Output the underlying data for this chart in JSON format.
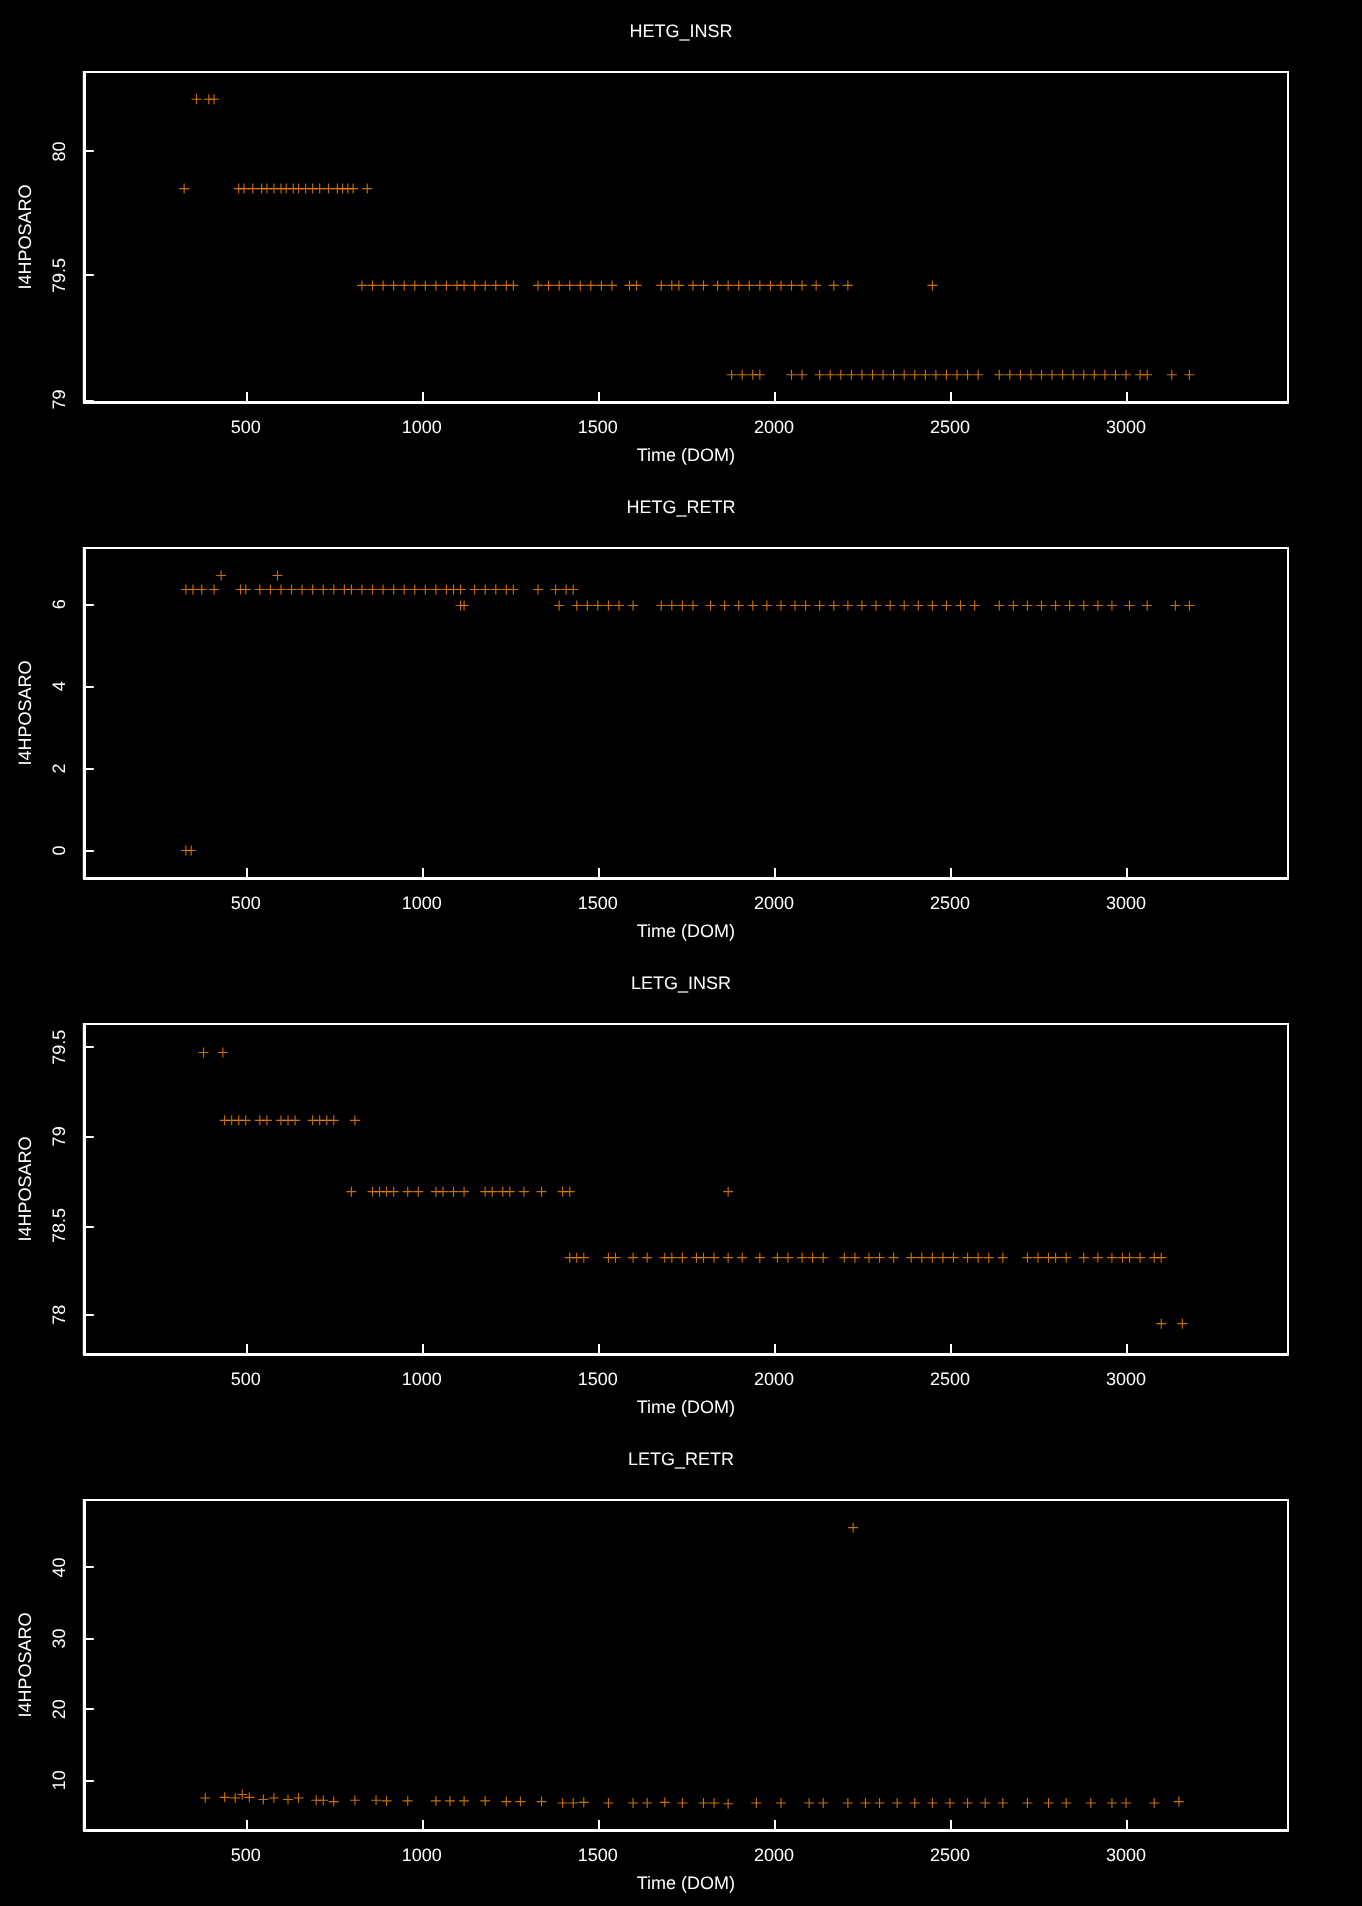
{
  "chart_data": [
    {
      "type": "scatter",
      "title": "HETG_INSR",
      "xlabel": "Time (DOM)",
      "ylabel": "I4HPOSARO",
      "xlim": [
        40,
        3460
      ],
      "xticks": [
        500,
        1000,
        1500,
        2000,
        2500,
        3000
      ],
      "ylim": [
        78.99,
        80.32
      ],
      "yticks": [
        79,
        79.5,
        80
      ],
      "marker": "cross",
      "series": [
        {
          "color": "#ff8c00",
          "x": [
            360,
            395,
            410
          ],
          "values": [
            80.21,
            80.21,
            80.21
          ]
        },
        {
          "color": "#ff8c00",
          "x": [
            325,
            480,
            495,
            520,
            545,
            560,
            580,
            600,
            615,
            635,
            650,
            670,
            690,
            710,
            735,
            760,
            775,
            790,
            805,
            845
          ],
          "values": [
            79.85,
            79.85,
            79.85,
            79.85,
            79.85,
            79.85,
            79.85,
            79.85,
            79.85,
            79.85,
            79.85,
            79.85,
            79.85,
            79.85,
            79.85,
            79.85,
            79.85,
            79.85,
            79.85,
            79.85
          ]
        },
        {
          "color": "#ff8c00",
          "x": [
            830,
            860,
            890,
            920,
            950,
            980,
            1010,
            1040,
            1070,
            1100,
            1120,
            1150,
            1180,
            1210,
            1240,
            1260,
            1330,
            1360,
            1390,
            1420,
            1450,
            1480,
            1510,
            1540,
            1590,
            1610,
            1680,
            1710,
            1730,
            1770,
            1800,
            1840,
            1870,
            1900,
            1930,
            1960,
            1990,
            2020,
            2050,
            2080,
            2120,
            2170,
            2210,
            2450
          ],
          "values": [
            79.46,
            79.46,
            79.46,
            79.46,
            79.46,
            79.46,
            79.46,
            79.46,
            79.46,
            79.46,
            79.46,
            79.46,
            79.46,
            79.46,
            79.46,
            79.46,
            79.46,
            79.46,
            79.46,
            79.46,
            79.46,
            79.46,
            79.46,
            79.46,
            79.46,
            79.46,
            79.46,
            79.46,
            79.46,
            79.46,
            79.46,
            79.46,
            79.46,
            79.46,
            79.46,
            79.46,
            79.46,
            79.46,
            79.46,
            79.46,
            79.46,
            79.46,
            79.46,
            79.46
          ]
        },
        {
          "color": "#ff8c00",
          "x": [
            1880,
            1910,
            1940,
            1960,
            2050,
            2080,
            2130,
            2160,
            2190,
            2220,
            2250,
            2280,
            2310,
            2340,
            2370,
            2400,
            2430,
            2460,
            2490,
            2520,
            2550,
            2580,
            2640,
            2670,
            2700,
            2730,
            2760,
            2790,
            2820,
            2850,
            2880,
            2910,
            2940,
            2970,
            3000,
            3040,
            3060,
            3130,
            3180
          ],
          "values": [
            79.1,
            79.1,
            79.1,
            79.1,
            79.1,
            79.1,
            79.1,
            79.1,
            79.1,
            79.1,
            79.1,
            79.1,
            79.1,
            79.1,
            79.1,
            79.1,
            79.1,
            79.1,
            79.1,
            79.1,
            79.1,
            79.1,
            79.1,
            79.1,
            79.1,
            79.1,
            79.1,
            79.1,
            79.1,
            79.1,
            79.1,
            79.1,
            79.1,
            79.1,
            79.1,
            79.1,
            79.1,
            79.1,
            79.1
          ]
        }
      ]
    },
    {
      "type": "scatter",
      "title": "HETG_RETR",
      "xlabel": "Time (DOM)",
      "ylabel": "I4HPOSARO",
      "xlim": [
        40,
        3460
      ],
      "xticks": [
        500,
        1000,
        1500,
        2000,
        2500,
        3000
      ],
      "ylim": [
        -0.67,
        7.37
      ],
      "yticks": [
        0,
        2,
        4,
        6
      ],
      "marker": "cross",
      "series": [
        {
          "color": "#ff8c00",
          "x": [
            430,
            590
          ],
          "values": [
            6.7,
            6.7
          ]
        },
        {
          "color": "#ff8c00",
          "x": [
            330,
            350,
            375,
            410,
            485,
            500,
            540,
            570,
            600,
            630,
            660,
            690,
            720,
            750,
            780,
            800,
            830,
            860,
            890,
            920,
            950,
            980,
            1010,
            1040,
            1070,
            1090,
            1110,
            1150,
            1180,
            1210,
            1240,
            1260,
            1330,
            1380,
            1410,
            1430
          ],
          "values": [
            6.36,
            6.36,
            6.36,
            6.36,
            6.36,
            6.36,
            6.36,
            6.36,
            6.36,
            6.36,
            6.36,
            6.36,
            6.36,
            6.36,
            6.36,
            6.36,
            6.36,
            6.36,
            6.36,
            6.36,
            6.36,
            6.36,
            6.36,
            6.36,
            6.36,
            6.36,
            6.36,
            6.36,
            6.36,
            6.36,
            6.36,
            6.36,
            6.36,
            6.36,
            6.36,
            6.36
          ]
        },
        {
          "color": "#ff8c00",
          "x": [
            1110,
            1120,
            1390,
            1440,
            1470,
            1500,
            1530,
            1560,
            1600,
            1680,
            1710,
            1740,
            1770,
            1820,
            1860,
            1900,
            1940,
            1980,
            2020,
            2060,
            2090,
            2130,
            2170,
            2210,
            2250,
            2290,
            2330,
            2370,
            2410,
            2450,
            2490,
            2530,
            2570,
            2640,
            2680,
            2720,
            2760,
            2800,
            2840,
            2880,
            2920,
            2960,
            3010,
            3060,
            3140,
            3180
          ],
          "values": [
            5.97,
            5.97,
            5.97,
            5.97,
            5.97,
            5.97,
            5.97,
            5.97,
            5.97,
            5.97,
            5.97,
            5.97,
            5.97,
            5.97,
            5.97,
            5.97,
            5.97,
            5.97,
            5.97,
            5.97,
            5.97,
            5.97,
            5.97,
            5.97,
            5.97,
            5.97,
            5.97,
            5.97,
            5.97,
            5.97,
            5.97,
            5.97,
            5.97,
            5.97,
            5.97,
            5.97,
            5.97,
            5.97,
            5.97,
            5.97,
            5.97,
            5.97,
            5.97,
            5.97,
            5.97,
            5.97
          ]
        },
        {
          "color": "#ff8c00",
          "x": [
            330,
            345
          ],
          "values": [
            0,
            0
          ]
        }
      ]
    },
    {
      "type": "scatter",
      "title": "LETG_INSR",
      "xlabel": "Time (DOM)",
      "ylabel": "I4HPOSARO",
      "xlim": [
        40,
        3460
      ],
      "xticks": [
        500,
        1000,
        1500,
        2000,
        2500,
        3000
      ],
      "ylim": [
        77.78,
        79.63
      ],
      "yticks": [
        78,
        78.5,
        79,
        79.5
      ],
      "marker": "cross",
      "series": [
        {
          "color": "#ff8c00",
          "x": [
            380,
            435
          ],
          "values": [
            79.47,
            79.47
          ]
        },
        {
          "color": "#ff8c00",
          "x": [
            440,
            460,
            480,
            500,
            540,
            560,
            600,
            620,
            640,
            690,
            710,
            730,
            750,
            810
          ],
          "values": [
            79.09,
            79.09,
            79.09,
            79.09,
            79.09,
            79.09,
            79.09,
            79.09,
            79.09,
            79.09,
            79.09,
            79.09,
            79.09,
            79.09
          ]
        },
        {
          "color": "#ff8c00",
          "x": [
            800,
            860,
            880,
            900,
            920,
            960,
            990,
            1040,
            1060,
            1090,
            1120,
            1180,
            1200,
            1230,
            1250,
            1290,
            1340,
            1400,
            1420,
            1870
          ],
          "values": [
            78.69,
            78.69,
            78.69,
            78.69,
            78.69,
            78.69,
            78.69,
            78.69,
            78.69,
            78.69,
            78.69,
            78.69,
            78.69,
            78.69,
            78.69,
            78.69,
            78.69,
            78.69,
            78.69,
            78.69
          ]
        },
        {
          "color": "#ff8c00",
          "x": [
            1420,
            1440,
            1460,
            1530,
            1550,
            1600,
            1640,
            1690,
            1710,
            1740,
            1780,
            1800,
            1830,
            1870,
            1910,
            1960,
            2010,
            2040,
            2080,
            2110,
            2140,
            2200,
            2230,
            2270,
            2300,
            2340,
            2390,
            2420,
            2450,
            2480,
            2510,
            2550,
            2580,
            2610,
            2650,
            2720,
            2750,
            2780,
            2800,
            2830,
            2880,
            2920,
            2960,
            2990,
            3010,
            3040,
            3080,
            3100
          ],
          "values": [
            78.32,
            78.32,
            78.32,
            78.32,
            78.32,
            78.32,
            78.32,
            78.32,
            78.32,
            78.32,
            78.32,
            78.32,
            78.32,
            78.32,
            78.32,
            78.32,
            78.32,
            78.32,
            78.32,
            78.32,
            78.32,
            78.32,
            78.32,
            78.32,
            78.32,
            78.32,
            78.32,
            78.32,
            78.32,
            78.32,
            78.32,
            78.32,
            78.32,
            78.32,
            78.32,
            78.32,
            78.32,
            78.32,
            78.32,
            78.32,
            78.32,
            78.32,
            78.32,
            78.32,
            78.32,
            78.32,
            78.32,
            78.32
          ]
        },
        {
          "color": "#ff8c00",
          "x": [
            3100,
            3160
          ],
          "values": [
            77.95,
            77.95
          ]
        }
      ]
    },
    {
      "type": "scatter",
      "title": "LETG_RETR",
      "xlabel": "Time (DOM)",
      "ylabel": "I4HPOSARO",
      "xlim": [
        40,
        3460
      ],
      "xticks": [
        500,
        1000,
        1500,
        2000,
        2500,
        3000
      ],
      "ylim": [
        3,
        49.5
      ],
      "yticks": [
        10,
        20,
        30,
        40
      ],
      "marker": "cross",
      "series": [
        {
          "color": "#ff8c00",
          "x": [
            385,
            440,
            470,
            490,
            510,
            550,
            580,
            620,
            650,
            700,
            720,
            750,
            810,
            870,
            900,
            960,
            1040,
            1080,
            1120,
            1180,
            1240,
            1280,
            1340,
            1400,
            1430,
            1460,
            1530,
            1600,
            1640,
            1690,
            1740,
            1800,
            1830,
            1870,
            1950,
            2020,
            2100,
            2140,
            2210,
            2225,
            2260,
            2300,
            2350,
            2400,
            2450,
            2500,
            2550,
            2600,
            2650,
            2720,
            2780,
            2830,
            2900,
            2960,
            3000,
            3080,
            3150
          ],
          "values": [
            7.5,
            7.6,
            7.5,
            8,
            7.6,
            7.3,
            7.5,
            7.3,
            7.5,
            7.2,
            7.2,
            7,
            7.2,
            7.2,
            7.1,
            7.1,
            7.1,
            7.1,
            7.1,
            7.1,
            7,
            7,
            7,
            6.8,
            6.8,
            6.9,
            6.8,
            6.8,
            6.8,
            6.9,
            6.8,
            6.8,
            6.8,
            6.7,
            6.8,
            6.8,
            6.8,
            6.8,
            6.8,
            45.6,
            6.8,
            6.8,
            6.8,
            6.8,
            6.8,
            6.8,
            6.8,
            6.8,
            6.8,
            6.8,
            6.8,
            6.8,
            6.8,
            6.8,
            6.8,
            6.8,
            7
          ]
        }
      ]
    }
  ]
}
